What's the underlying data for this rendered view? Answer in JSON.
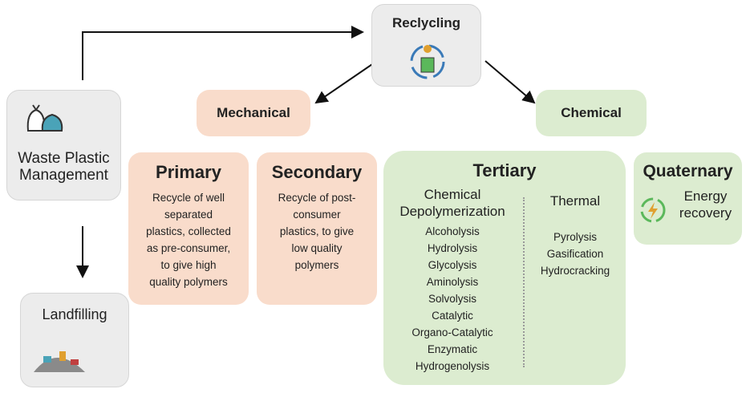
{
  "nodes": {
    "waste": {
      "label": [
        "Waste Plastic",
        "Management"
      ]
    },
    "landfill": {
      "label": [
        "Landfilling"
      ]
    },
    "recycling": {
      "label": [
        "Reclycling"
      ]
    },
    "mechanical": {
      "label": [
        "Mechanical"
      ]
    },
    "chemical": {
      "label": [
        "Chemical"
      ]
    },
    "primary": {
      "title": "Primary",
      "text": [
        "Recycle of well",
        "separated",
        "plastics, collected",
        "as pre-consumer,",
        "to give high",
        "quality polymers"
      ]
    },
    "secondary": {
      "title": "Secondary",
      "text": [
        "Recycle of post-",
        "consumer",
        "plastics, to give",
        "low quality",
        "polymers"
      ]
    },
    "tertiary": {
      "title": "Tertiary",
      "columns": [
        {
          "heading": [
            "Chemical",
            "Depolymerization"
          ],
          "items": [
            "Alcoholysis",
            "Hydrolysis",
            "Glycolysis",
            "Aminolysis",
            "Solvolysis",
            "Catalytic",
            "Organo-Catalytic",
            "Enzymatic",
            "Hydrogenolysis"
          ]
        },
        {
          "heading": [
            "Thermal"
          ],
          "items": [
            "Pyrolysis",
            "Gasification",
            "Hydrocracking"
          ]
        }
      ]
    },
    "quaternary": {
      "title": "Quaternary",
      "text": [
        "Energy",
        "recovery"
      ]
    }
  }
}
